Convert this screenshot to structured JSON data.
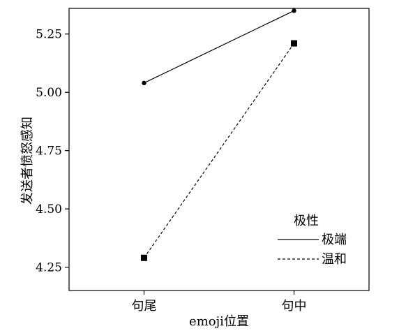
{
  "chart_data": {
    "type": "line",
    "title": "",
    "xlabel": "emoji位置",
    "ylabel": "发送者愤怒感知",
    "categories": [
      "句尾",
      "句中"
    ],
    "y_ticks": [
      4.25,
      4.5,
      4.75,
      5.0,
      5.25
    ],
    "y_tick_labels": [
      "4.25",
      "4.50",
      "4.75",
      "5.00",
      "5.25"
    ],
    "ylim": [
      4.15,
      5.36
    ],
    "grid": false,
    "legend": {
      "title": "极性",
      "position": "bottom-right"
    },
    "series": [
      {
        "name": "极端",
        "values": [
          5.04,
          5.35
        ],
        "line_style": "solid",
        "marker": "circle",
        "color": "#000000"
      },
      {
        "name": "温和",
        "values": [
          4.29,
          5.21
        ],
        "line_style": "dashed",
        "marker": "square",
        "color": "#000000"
      }
    ]
  }
}
